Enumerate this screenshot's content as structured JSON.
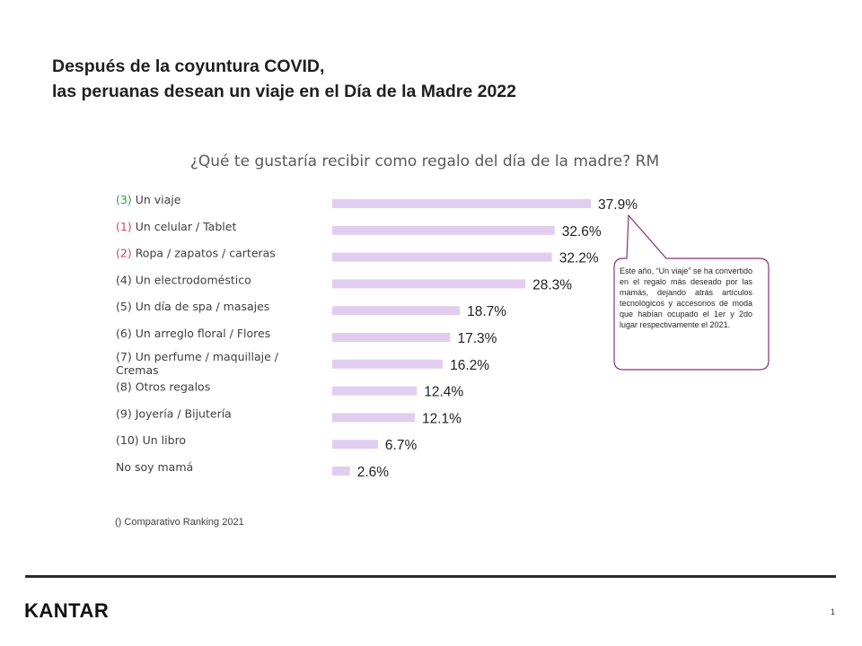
{
  "title_line1": "Después de la coyuntura COVID,",
  "title_line2": "las peruanas desean un viaje en el Día de la Madre 2022",
  "chart_data": {
    "type": "bar",
    "orientation": "horizontal",
    "title": "¿Qué te gustaría recibir como regalo del día de la madre? RM",
    "categories": [
      {
        "rank": "(3)",
        "label": "Un viaje",
        "rank_color": "#2e9a4a"
      },
      {
        "rank": "(1)",
        "label": "Un celular / Tablet",
        "rank_color": "#d6455f"
      },
      {
        "rank": "(2)",
        "label": "Ropa / zapatos / carteras",
        "rank_color": "#d6455f"
      },
      {
        "rank": "(4)",
        "label": "Un electrodoméstico",
        "rank_color": "#404040"
      },
      {
        "rank": "(5)",
        "label": "Un día de spa / masajes",
        "rank_color": "#404040"
      },
      {
        "rank": "(6)",
        "label": "Un arreglo floral / Flores",
        "rank_color": "#404040"
      },
      {
        "rank": "(7)",
        "label": "Un perfume / maquillaje / Cremas",
        "rank_color": "#404040"
      },
      {
        "rank": "(8)",
        "label": "Otros regalos",
        "rank_color": "#404040"
      },
      {
        "rank": "(9)",
        "label": "Joyería / Bijutería",
        "rank_color": "#404040"
      },
      {
        "rank": "(10)",
        "label": "Un libro",
        "rank_color": "#404040"
      },
      {
        "rank": "",
        "label": "No soy mamá",
        "rank_color": "#404040"
      }
    ],
    "values": [
      37.9,
      32.6,
      32.2,
      28.3,
      18.7,
      17.3,
      16.2,
      12.4,
      12.1,
      6.7,
      2.6
    ],
    "value_labels": [
      "37.9%",
      "32.6%",
      "32.2%",
      "28.3%",
      "18.7%",
      "17.3%",
      "16.2%",
      "12.4%",
      "12.1%",
      "6.7%",
      "2.6%"
    ],
    "unit": "%",
    "bar_color": "#e2cdf0",
    "xlim": [
      0,
      40
    ],
    "grid": false,
    "legend": "none"
  },
  "callout": {
    "text": "Este año, “Un viaje” se ha convertido en el regalo más deseado por las mamás, dejando atrás artículos tecnológicos y accesorios de moda que habían ocupado el 1er y 2do lugar respectivamente el 2021.",
    "border_color": "#8b2f7a"
  },
  "footnote": "() Comparativo Ranking 2021",
  "logo": "KANTAR",
  "page_number": "1"
}
